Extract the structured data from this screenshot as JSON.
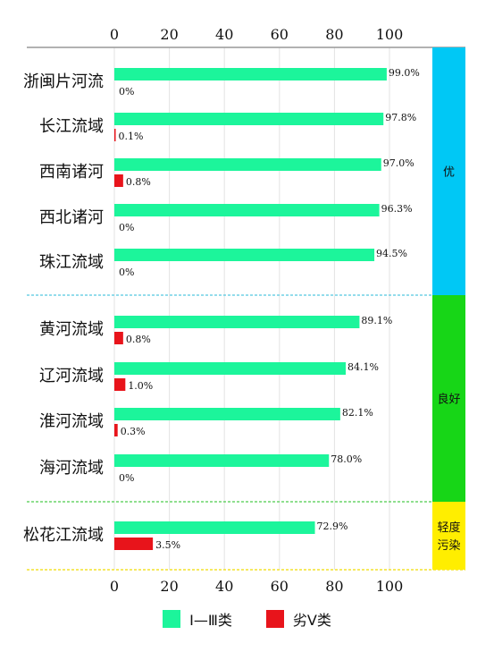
{
  "chart_data": {
    "type": "bar",
    "orientation": "horizontal",
    "xlim": [
      0,
      100
    ],
    "xticks": [
      "0",
      "20",
      "40",
      "60",
      "80",
      "100"
    ],
    "categories": [
      "浙闽片河流",
      "长江流域",
      "西南诸河",
      "西北诸河",
      "珠江流域",
      "黄河流域",
      "辽河流域",
      "淮河流域",
      "海河流域",
      "松花江流域"
    ],
    "series": [
      {
        "name": "Ⅰ—Ⅲ类",
        "color": "#1cf59b",
        "values": [
          99.0,
          97.8,
          97.0,
          96.3,
          94.5,
          89.1,
          84.1,
          82.1,
          78.0,
          72.9
        ],
        "labels": [
          "99.0%",
          "97.8%",
          "97.0%",
          "96.3%",
          "94.5%",
          "89.1%",
          "84.1%",
          "82.1%",
          "78.0%",
          "72.9%"
        ]
      },
      {
        "name": "劣Ⅴ类",
        "color": "#e8141b",
        "values": [
          0,
          0.1,
          0.8,
          0,
          0,
          0.8,
          1.0,
          0.3,
          0,
          3.5
        ],
        "labels": [
          "0%",
          "0.1%",
          "0.8%",
          "0%",
          "0%",
          "0.8%",
          "1.0%",
          "0.3%",
          "0%",
          "3.5%"
        ]
      }
    ],
    "bands": [
      {
        "label": "优",
        "color": "#00c8f5",
        "from": 0,
        "to": 4
      },
      {
        "label": "良好",
        "color": "#17d617",
        "from": 5,
        "to": 8
      },
      {
        "label": "轻度污染",
        "label_lines": [
          "轻度",
          "污染"
        ],
        "color": "#ffee00",
        "from": 9,
        "to": 9
      }
    ],
    "grid": true,
    "legend_position": "bottom-center"
  },
  "legend": {
    "items": [
      {
        "label": "Ⅰ—Ⅲ类",
        "color": "#1cf59b"
      },
      {
        "label": "劣Ⅴ类",
        "color": "#e8141b"
      }
    ]
  }
}
